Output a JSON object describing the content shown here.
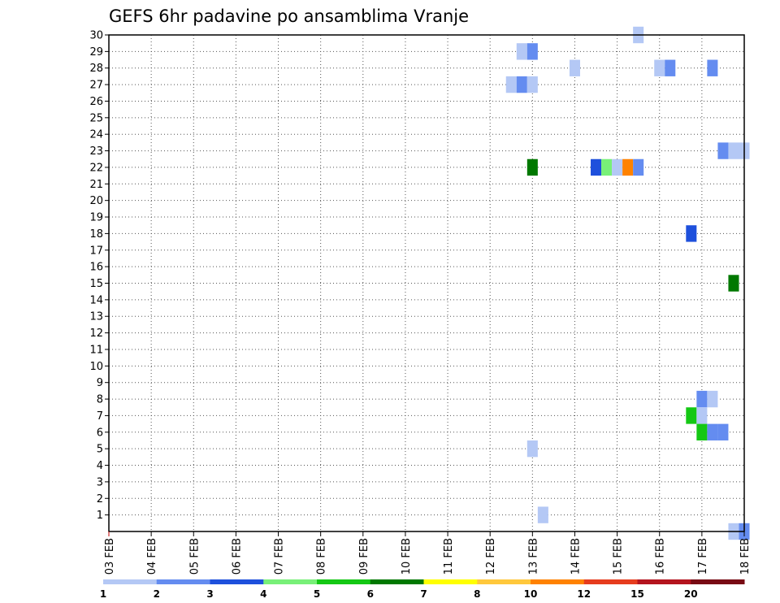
{
  "chart_data": {
    "type": "heatmap",
    "title": "GEFS 6hr padavine po ansamblima Vranje",
    "xlabel": "",
    "ylabel": "",
    "x_ticks": [
      "03 FEB",
      "04 FEB",
      "05 FEB",
      "06 FEB",
      "07 FEB",
      "08 FEB",
      "09 FEB",
      "10 FEB",
      "11 FEB",
      "12 FEB",
      "13 FEB",
      "14 FEB",
      "15 FEB",
      "16 FEB",
      "17 FEB",
      "18 FEB"
    ],
    "xlim": [
      0,
      15
    ],
    "y_ticks": [
      1,
      2,
      3,
      4,
      5,
      6,
      7,
      8,
      9,
      10,
      11,
      12,
      13,
      14,
      15,
      16,
      17,
      18,
      19,
      20,
      21,
      22,
      23,
      24,
      25,
      26,
      27,
      28,
      29,
      30
    ],
    "ylim": [
      0,
      30
    ],
    "grid": true,
    "color_scale": {
      "levels": [
        "1",
        "2",
        "3",
        "4",
        "5",
        "6",
        "7",
        "8",
        "10",
        "12",
        "15",
        "20"
      ],
      "colors": [
        "#b4c8f5",
        "#648cf0",
        "#1e50dc",
        "#78f078",
        "#14c814",
        "#007800",
        "#ffff00",
        "#ffc83c",
        "#ff8200",
        "#e63c1e",
        "#b4141e",
        "#780a14"
      ]
    },
    "cells": [
      {
        "day": 9.75,
        "member": 29,
        "bin": 1
      },
      {
        "day": 10.0,
        "member": 29,
        "bin": 2
      },
      {
        "day": 9.5,
        "member": 27,
        "bin": 1
      },
      {
        "day": 9.75,
        "member": 27,
        "bin": 2
      },
      {
        "day": 10.0,
        "member": 27,
        "bin": 1
      },
      {
        "day": 11.0,
        "member": 28,
        "bin": 1
      },
      {
        "day": 12.5,
        "member": 30,
        "bin": 1
      },
      {
        "day": 13.0,
        "member": 28,
        "bin": 1
      },
      {
        "day": 13.25,
        "member": 28,
        "bin": 2
      },
      {
        "day": 14.25,
        "member": 28,
        "bin": 2
      },
      {
        "day": 14.5,
        "member": 23,
        "bin": 2
      },
      {
        "day": 14.75,
        "member": 23,
        "bin": 1
      },
      {
        "day": 15.0,
        "member": 23,
        "bin": 1
      },
      {
        "day": 10.0,
        "member": 22,
        "bin": 6
      },
      {
        "day": 11.5,
        "member": 22,
        "bin": 3
      },
      {
        "day": 11.75,
        "member": 22,
        "bin": 4
      },
      {
        "day": 12.0,
        "member": 22,
        "bin": 1
      },
      {
        "day": 12.25,
        "member": 22,
        "bin": 9
      },
      {
        "day": 12.5,
        "member": 22,
        "bin": 2
      },
      {
        "day": 13.75,
        "member": 18,
        "bin": 3
      },
      {
        "day": 14.75,
        "member": 15,
        "bin": 6
      },
      {
        "day": 14.0,
        "member": 8,
        "bin": 2
      },
      {
        "day": 14.25,
        "member": 8,
        "bin": 1
      },
      {
        "day": 13.75,
        "member": 7,
        "bin": 5
      },
      {
        "day": 14.0,
        "member": 7,
        "bin": 1
      },
      {
        "day": 14.0,
        "member": 6,
        "bin": 5
      },
      {
        "day": 14.25,
        "member": 6,
        "bin": 2
      },
      {
        "day": 14.5,
        "member": 6,
        "bin": 2
      },
      {
        "day": 10.0,
        "member": 5,
        "bin": 1
      },
      {
        "day": 10.25,
        "member": 1,
        "bin": 1
      },
      {
        "day": 14.75,
        "member": 0,
        "bin": 1
      },
      {
        "day": 15.0,
        "member": 0,
        "bin": 2
      }
    ]
  }
}
